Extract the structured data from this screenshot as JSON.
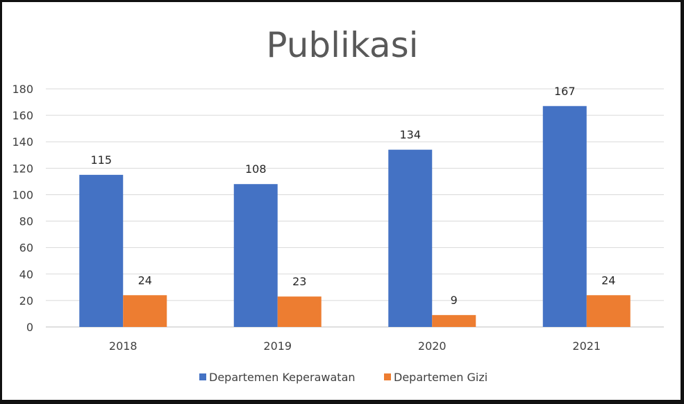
{
  "chart_data": {
    "type": "bar",
    "title": "Publikasi",
    "categories": [
      "2018",
      "2019",
      "2020",
      "2021"
    ],
    "series": [
      {
        "name": "Departemen Keperawatan",
        "values": [
          115,
          108,
          134,
          167
        ],
        "color": "#4472C4"
      },
      {
        "name": "Departemen Gizi",
        "values": [
          24,
          23,
          9,
          24
        ],
        "color": "#ED7D31"
      }
    ],
    "ylim": [
      0,
      180
    ],
    "yticks": [
      "0",
      "20",
      "40",
      "60",
      "80",
      "100",
      "120",
      "140",
      "160",
      "180"
    ],
    "grid": true,
    "legend": "bottom",
    "data_labels": true
  }
}
